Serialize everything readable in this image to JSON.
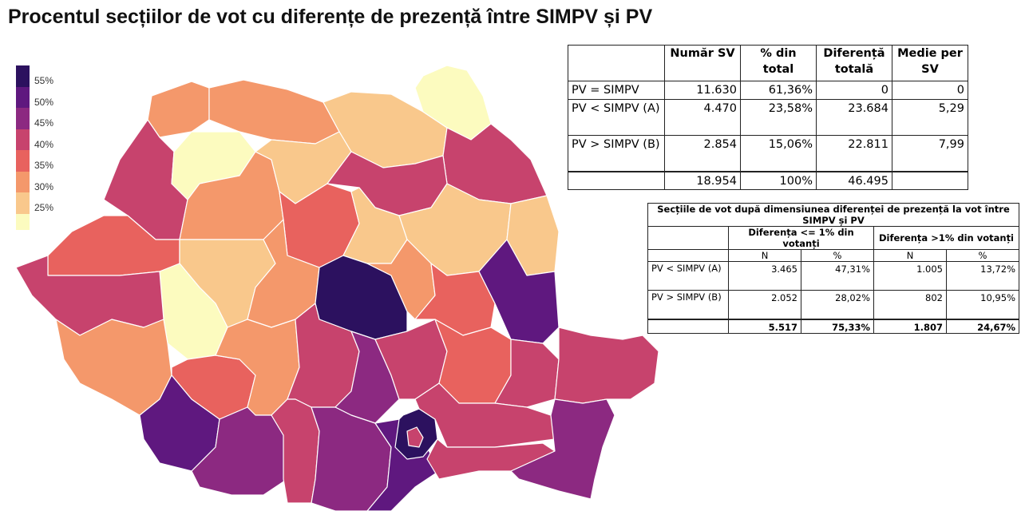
{
  "title": "Procentul secțiilor de vot cu diferențe de prezență între SIMPV și PV",
  "colors": {
    "c55": "#2c115f",
    "c50": "#5f187f",
    "c45": "#8c2981",
    "c40": "#c7436d",
    "c35": "#e8625e",
    "c30": "#f4986b",
    "c25": "#f9c88c",
    "c20": "#fcfbbf"
  },
  "legend": {
    "labels": [
      "55%",
      "50%",
      "45%",
      "40%",
      "35%",
      "30%",
      "25%"
    ],
    "colors": [
      "#2c115f",
      "#5f187f",
      "#8c2981",
      "#c7436d",
      "#e8625e",
      "#f4986b",
      "#f9c88c",
      "#fcfbbf"
    ]
  },
  "table1": {
    "headers": [
      "",
      "Număr SV",
      "% din total",
      "Diferență totală",
      "Medie per SV"
    ],
    "rows": [
      [
        "PV = SIMPV",
        "11.630",
        "61,36%",
        "0",
        "0"
      ],
      [
        "PV < SIMPV (A)",
        "4.470",
        "23,58%",
        "23.684",
        "5,29"
      ],
      [
        "PV > SIMPV (B)",
        "2.854",
        "15,06%",
        "22.811",
        "7,99"
      ],
      [
        "",
        "18.954",
        "100%",
        "46.495",
        ""
      ]
    ]
  },
  "table2": {
    "title": "Secțiile de vot după dimensiunea diferenței de prezență la vot între SIMPV și PV",
    "group1": "Diferența <= 1% din votanți",
    "group2": "Diferența >1% din votanți",
    "subheaders": [
      "N",
      "%",
      "N",
      "%"
    ],
    "rows": [
      [
        "PV < SIMPV (A)",
        "3.465",
        "47,31%",
        "1.005",
        "13,72%"
      ],
      [
        "PV > SIMPV (B)",
        "2.052",
        "28,02%",
        "802",
        "10,95%"
      ],
      [
        "",
        "5.517",
        "75,33%",
        "1.807",
        "24,67%"
      ]
    ]
  }
}
